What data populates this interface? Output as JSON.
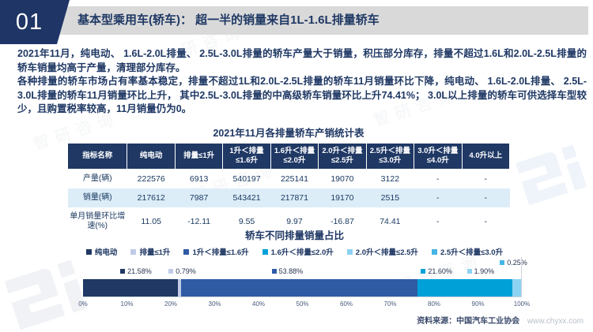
{
  "page": {
    "section_number": "01",
    "title": "基本型乘用车(轿车)：  超一半的销量来自1L-1.6L排量轿车"
  },
  "paragraphs": {
    "p1": "2021年11月，纯电动、 1.6L-2.0L排量、 2.5L-3.0L排量的轿车产量大于销量，积压部分库存，排量不超过1.6L和2.0L-2.5L排量的轿车销量均高于产量，清理部分库存。",
    "p2": "各种排量的轿车市场占有率基本稳定，排量不超过1L和2.0L-2.5L排量的轿车11月销量环比下降，纯电动、 1.6L-2.0L排量、 2.5L-3.0L排量的轿车11月销量环比上升， 其中2.5L-3.0L排量的中高级轿车销量环比上升74.41%； 3.0L以上排量的轿车可供选择车型较少，且购置税率较高，11月销量仍为0。"
  },
  "table": {
    "title": "2021年11月各排量轿车产销统计表",
    "headers": [
      "指标名称",
      "纯电动",
      "排量≤1升",
      "1升＜排量≤1.6升",
      "1.6升＜排量≤2.0升",
      "2.0升＜排量≤2.5升",
      "2.5升＜排量≤3.0升",
      "3.0升＜排量≤4.0升",
      "4.0升以上"
    ],
    "rows": [
      {
        "label": "产量(辆)",
        "values": [
          "222576",
          "6913",
          "540197",
          "225141",
          "19070",
          "3122",
          "-",
          "-"
        ]
      },
      {
        "label": "销量(辆)",
        "values": [
          "217612",
          "7987",
          "543421",
          "217871",
          "19170",
          "2515",
          "-",
          "-"
        ]
      },
      {
        "label": "单月销量环比增速(%)",
        "values": [
          "11.05",
          "-12.11",
          "9.55",
          "9.97",
          "-16.87",
          "74.41",
          "-",
          "-"
        ]
      }
    ]
  },
  "chart_data": {
    "type": "bar",
    "subtype": "horizontal-stacked-percentage",
    "title": "轿车不同排量销量占比",
    "series": [
      {
        "name": "纯电动",
        "value": 21.58,
        "label": "21.58%",
        "color": "#1f3864"
      },
      {
        "name": "排量≤1升",
        "value": 0.79,
        "label": "0.79%",
        "color": "#c0cbe6"
      },
      {
        "name": "1升＜排量≤1.6升",
        "value": 53.88,
        "label": "53.88%",
        "color": "#2f5ba5"
      },
      {
        "name": "1.6升＜排量≤2.0升",
        "value": 21.6,
        "label": "21.60%",
        "color": "#00a0d8"
      },
      {
        "name": "2.0升＜排量≤2.5升",
        "value": 1.9,
        "label": "1.90%",
        "color": "#8cd2f2"
      },
      {
        "name": "2.5升＜排量≤3.0升",
        "value": 0.25,
        "label": "0.25%",
        "color": "#45b5e6"
      }
    ],
    "x_ticks": [
      "0%",
      "10%",
      "20%",
      "30%",
      "40%",
      "50%",
      "60%",
      "70%",
      "80%",
      "90%",
      "100%"
    ],
    "xlim": [
      0,
      100
    ],
    "legend_position": "top",
    "grid": false
  },
  "footer": {
    "source": "资料来源：中国汽车工业协会",
    "site": "www.chyxx.com"
  },
  "watermark": {
    "brand": "智研咨询"
  }
}
